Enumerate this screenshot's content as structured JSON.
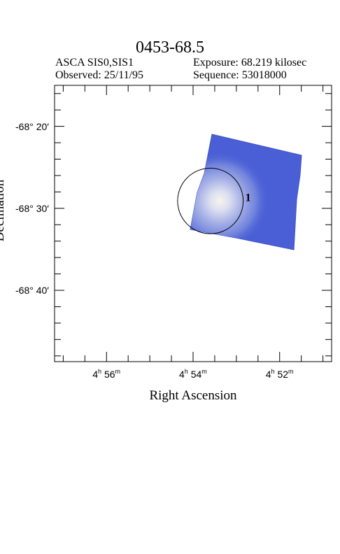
{
  "chart_data": {
    "type": "image",
    "title": "0453-68.5",
    "header": {
      "instrument": "ASCA SIS0,SIS1",
      "exposure": "Exposure: 68.219 kilosec",
      "observed": "Observed: 25/11/95",
      "sequence": "Sequence: 53018000"
    },
    "xlabel": "Right Ascension",
    "ylabel": "Declination",
    "x_ticks": [
      {
        "h": "4",
        "m": "56",
        "ra_min": 296
      },
      {
        "h": "4",
        "m": "54",
        "ra_min": 294
      },
      {
        "h": "4",
        "m": "52",
        "ra_min": 292
      }
    ],
    "y_ticks": [
      {
        "label": "-68° 20′",
        "dec_arcmin": -4100
      },
      {
        "label": "-68° 30′",
        "dec_arcmin": -4110
      },
      {
        "label": "-68° 40′",
        "dec_arcmin": -4120
      }
    ],
    "xlim_ra_min": [
      297.2,
      290.8
    ],
    "ylim_dec_arcmin": [
      -4095,
      -4128.7
    ],
    "source_region": {
      "label": "1",
      "ra_min": 293.6,
      "dec_arcmin": -4109.1,
      "radius_arcmin": 4.0
    },
    "colors": {
      "image": "#4a5fd6",
      "image_edge": "#3f4fc8",
      "bright": "#f4f2ec"
    }
  }
}
